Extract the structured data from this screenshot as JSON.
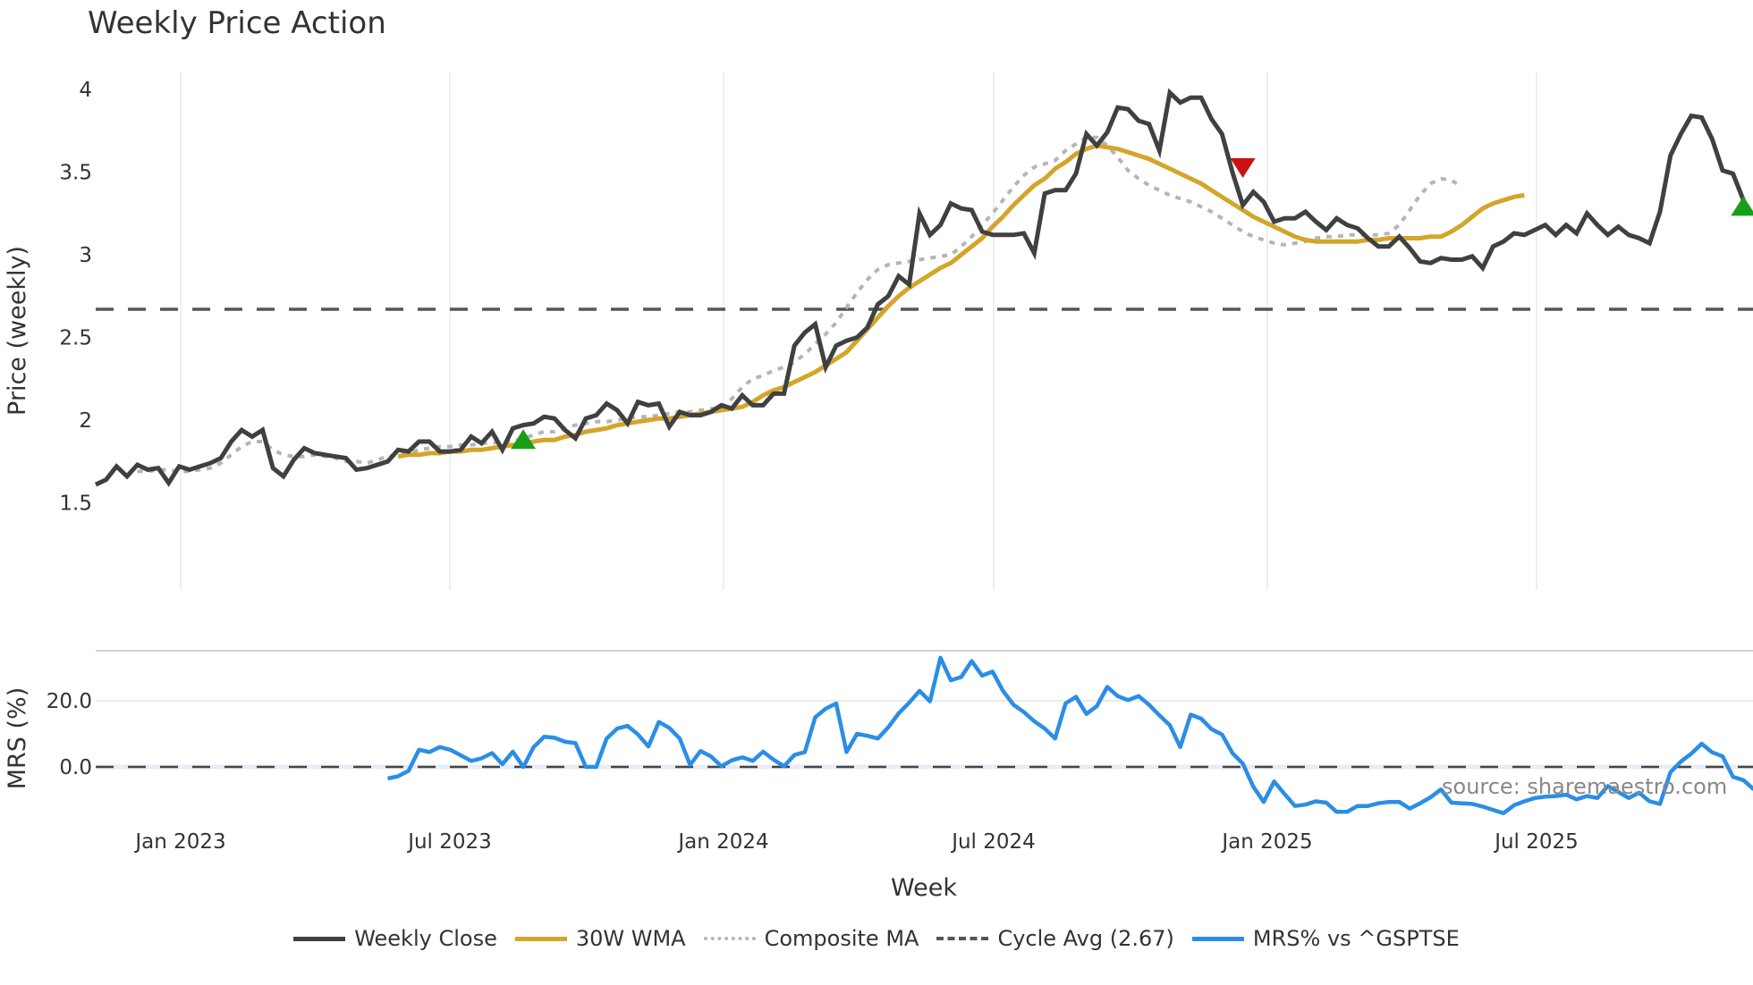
{
  "title": "Weekly Price Action",
  "source_note": "source: sharemaestro.com",
  "colors": {
    "weekly_close": "#404040",
    "wma30": "#d4a52b",
    "composite_ma": "#b5b5b5",
    "cycle_avg": "#555555",
    "mrs": "#2b8ee6",
    "buy_marker": "#1a9e1a",
    "sell_marker": "#cc1111"
  },
  "legend": [
    {
      "label": "Weekly Close",
      "key": "weekly_close",
      "style": "solid"
    },
    {
      "label": "30W WMA",
      "key": "wma30",
      "style": "solid"
    },
    {
      "label": "Composite MA",
      "key": "composite_ma",
      "style": "dotted"
    },
    {
      "label": "Cycle Avg (2.67)",
      "key": "cycle_avg",
      "style": "dashed"
    },
    {
      "label": "MRS% vs ^GSPTSE",
      "key": "mrs",
      "style": "solid"
    }
  ],
  "chart_data": [
    {
      "type": "line",
      "title": "Weekly Price Action",
      "xlabel": "Week",
      "ylabel": "Price (weekly)",
      "ylim": [
        1.5,
        4.1
      ],
      "yticks": [
        1.5,
        2,
        2.5,
        3,
        3.5,
        4
      ],
      "xticks": [
        "Jan 2023",
        "Jul 2023",
        "Jan 2024",
        "Jul 2024",
        "Jan 2025",
        "Jul 2025"
      ],
      "x_start": "Nov 2022",
      "x_end": "Nov 2025",
      "x_unit": "week",
      "grid": "vertical",
      "cycle_avg": 2.67,
      "series": [
        {
          "name": "Weekly Close",
          "start_week": 0,
          "values": [
            1.61,
            1.64,
            1.72,
            1.66,
            1.73,
            1.7,
            1.71,
            1.62,
            1.72,
            1.7,
            1.72,
            1.74,
            1.77,
            1.87,
            1.94,
            1.9,
            1.94,
            1.71,
            1.66,
            1.76,
            1.83,
            1.8,
            1.79,
            1.78,
            1.77,
            1.7,
            1.71,
            1.73,
            1.75,
            1.82,
            1.81,
            1.87,
            1.87,
            1.81,
            1.81,
            1.82,
            1.9,
            1.86,
            1.93,
            1.82,
            1.95,
            1.97,
            1.98,
            2.02,
            2.01,
            1.94,
            1.89,
            2.01,
            2.03,
            2.1,
            2.06,
            1.98,
            2.11,
            2.09,
            2.1,
            1.96,
            2.05,
            2.03,
            2.03,
            2.05,
            2.09,
            2.07,
            2.15,
            2.09,
            2.09,
            2.16,
            2.16,
            2.45,
            2.53,
            2.58,
            2.32,
            2.45,
            2.48,
            2.5,
            2.56,
            2.7,
            2.75,
            2.87,
            2.82,
            3.25,
            3.12,
            3.18,
            3.31,
            3.28,
            3.27,
            3.14,
            3.12,
            3.12,
            3.12,
            3.13,
            3.01,
            3.37,
            3.39,
            3.39,
            3.49,
            3.73,
            3.66,
            3.74,
            3.89,
            3.88,
            3.81,
            3.79,
            3.63,
            3.98,
            3.92,
            3.95,
            3.95,
            3.82,
            3.73,
            3.5,
            3.3,
            3.38,
            3.32,
            3.2,
            3.22,
            3.22,
            3.26,
            3.2,
            3.15,
            3.22,
            3.18,
            3.16,
            3.1,
            3.05,
            3.05,
            3.11,
            3.04,
            2.96,
            2.95,
            2.98,
            2.97,
            2.97,
            2.99,
            2.92,
            3.05,
            3.08,
            3.13,
            3.12,
            3.15,
            3.18,
            3.12,
            3.18,
            3.13,
            3.25,
            3.18,
            3.12,
            3.17,
            3.12,
            3.1,
            3.07,
            3.26,
            3.6,
            3.73,
            3.84,
            3.83,
            3.7,
            3.51,
            3.49,
            3.33
          ]
        },
        {
          "name": "30W WMA",
          "start_week": 29,
          "values": [
            1.78,
            1.79,
            1.79,
            1.8,
            1.8,
            1.81,
            1.81,
            1.82,
            1.82,
            1.83,
            1.84,
            1.85,
            1.86,
            1.87,
            1.88,
            1.88,
            1.9,
            1.91,
            1.93,
            1.94,
            1.95,
            1.97,
            1.98,
            1.99,
            2.0,
            2.01,
            2.01,
            2.02,
            2.03,
            2.04,
            2.05,
            2.06,
            2.07,
            2.08,
            2.11,
            2.15,
            2.18,
            2.2,
            2.23,
            2.26,
            2.29,
            2.33,
            2.37,
            2.41,
            2.48,
            2.55,
            2.62,
            2.69,
            2.75,
            2.8,
            2.84,
            2.88,
            2.92,
            2.95,
            3.0,
            3.05,
            3.1,
            3.17,
            3.23,
            3.3,
            3.36,
            3.42,
            3.46,
            3.52,
            3.56,
            3.61,
            3.64,
            3.66,
            3.65,
            3.64,
            3.62,
            3.6,
            3.58,
            3.55,
            3.52,
            3.49,
            3.46,
            3.43,
            3.39,
            3.35,
            3.31,
            3.27,
            3.23,
            3.2,
            3.17,
            3.14,
            3.11,
            3.09,
            3.08,
            3.08,
            3.08,
            3.08,
            3.08,
            3.09,
            3.09,
            3.1,
            3.1,
            3.1,
            3.1,
            3.11,
            3.11,
            3.14,
            3.18,
            3.23,
            3.28,
            3.31,
            3.33,
            3.35,
            3.36
          ]
        },
        {
          "name": "Composite MA",
          "start_week": 4,
          "values": [
            1.69,
            1.69,
            1.7,
            1.7,
            1.69,
            1.69,
            1.7,
            1.71,
            1.74,
            1.79,
            1.84,
            1.87,
            1.87,
            1.82,
            1.79,
            1.78,
            1.78,
            1.79,
            1.78,
            1.77,
            1.75,
            1.75,
            1.74,
            1.76,
            1.78,
            1.79,
            1.8,
            1.82,
            1.83,
            1.84,
            1.84,
            1.85,
            1.85,
            1.86,
            1.86,
            1.87,
            1.87,
            1.89,
            1.91,
            1.93,
            1.93,
            1.95,
            1.97,
            1.98,
            1.99,
            1.99,
            2.0,
            2.01,
            2.02,
            2.02,
            2.03,
            2.04,
            2.05,
            2.05,
            2.06,
            2.07,
            2.07,
            2.13,
            2.2,
            2.25,
            2.27,
            2.3,
            2.32,
            2.35,
            2.4,
            2.46,
            2.52,
            2.59,
            2.68,
            2.77,
            2.85,
            2.91,
            2.94,
            2.95,
            2.96,
            2.97,
            2.98,
            2.99,
            3.0,
            3.05,
            3.11,
            3.18,
            3.25,
            3.33,
            3.41,
            3.48,
            3.53,
            3.55,
            3.57,
            3.63,
            3.67,
            3.71,
            3.71,
            3.66,
            3.59,
            3.51,
            3.46,
            3.42,
            3.39,
            3.36,
            3.34,
            3.32,
            3.29,
            3.26,
            3.22,
            3.18,
            3.14,
            3.11,
            3.09,
            3.07,
            3.06,
            3.07,
            3.08,
            3.1,
            3.11,
            3.11,
            3.12,
            3.12,
            3.12,
            3.12,
            3.13,
            3.18,
            3.27,
            3.36,
            3.43,
            3.46,
            3.45,
            3.41
          ]
        },
        {
          "name": "Cycle Avg (2.67)",
          "constant": 2.67
        }
      ],
      "markers": [
        {
          "type": "buy",
          "shape": "triangle-up",
          "week": 41,
          "value": 1.88
        },
        {
          "type": "sell",
          "shape": "triangle-down",
          "week": 110,
          "value": 3.53
        },
        {
          "type": "buy",
          "shape": "triangle-up",
          "week": 158,
          "value": 3.29
        }
      ]
    },
    {
      "type": "line",
      "ylabel": "MRS (%)",
      "yticks": [
        0.0,
        20.0
      ],
      "ylim": [
        -15,
        35
      ],
      "reference_line": 0.0,
      "series": [
        {
          "name": "MRS% vs ^GSPTSE",
          "start_week": 28,
          "values": [
            -3.5,
            -2.8,
            -1.2,
            5.2,
            4.5,
            6.0,
            5.2,
            3.5,
            1.8,
            2.6,
            4.2,
            0.8,
            4.6,
            0.0,
            6.0,
            9.1,
            8.8,
            7.6,
            7.2,
            0.0,
            0.0,
            8.6,
            11.6,
            12.4,
            9.8,
            6.2,
            13.6,
            11.8,
            8.6,
            0.6,
            4.8,
            3.2,
            0.2,
            2.0,
            2.9,
            1.8,
            4.6,
            2.2,
            0.2,
            3.6,
            4.5,
            15.0,
            17.6,
            19.2,
            4.5,
            10.0,
            9.4,
            8.6,
            12.0,
            16.2,
            19.4,
            23.0,
            19.8,
            33.0,
            26.2,
            27.2,
            32.0,
            27.6,
            28.8,
            23.0,
            18.8,
            16.6,
            13.8,
            11.6,
            8.6,
            19.2,
            21.2,
            16.0,
            18.4,
            24.2,
            21.4,
            20.2,
            21.4,
            18.8,
            15.6,
            12.6,
            6.0,
            15.8,
            14.6,
            11.4,
            9.8,
            4.2,
            1.0,
            -6.0,
            -10.6,
            -4.4,
            -8.2,
            -11.8,
            -11.4,
            -10.4,
            -10.8,
            -13.6,
            -13.6,
            -11.8,
            -11.8,
            -11.0,
            -10.6,
            -10.6,
            -12.6,
            -11.0,
            -9.2,
            -6.8,
            -10.8,
            -11.0,
            -11.2,
            -12.0,
            -13.0,
            -14.0,
            -11.6,
            -10.4,
            -9.4,
            -9.0,
            -8.8,
            -8.4,
            -9.8,
            -8.8,
            -9.4,
            -5.8,
            -7.6,
            -9.4,
            -7.8,
            -10.4,
            -11.2,
            -1.6,
            1.6,
            4.0,
            7.0,
            4.4,
            3.2,
            -3.0,
            -4.0,
            -6.8
          ]
        }
      ]
    }
  ],
  "price_panel": {
    "ylabel": "Price (weekly)",
    "yticks": [
      "4",
      "3.5",
      "3",
      "2.5",
      "2",
      "1.5"
    ]
  },
  "mrs_panel": {
    "ylabel": "MRS (%)",
    "yticks": [
      "20.0",
      "0.0"
    ]
  },
  "xaxis": {
    "label": "Week",
    "ticks": [
      "Jan 2023",
      "Jul 2023",
      "Jan 2024",
      "Jul 2024",
      "Jan 2025",
      "Jul 2025"
    ]
  }
}
